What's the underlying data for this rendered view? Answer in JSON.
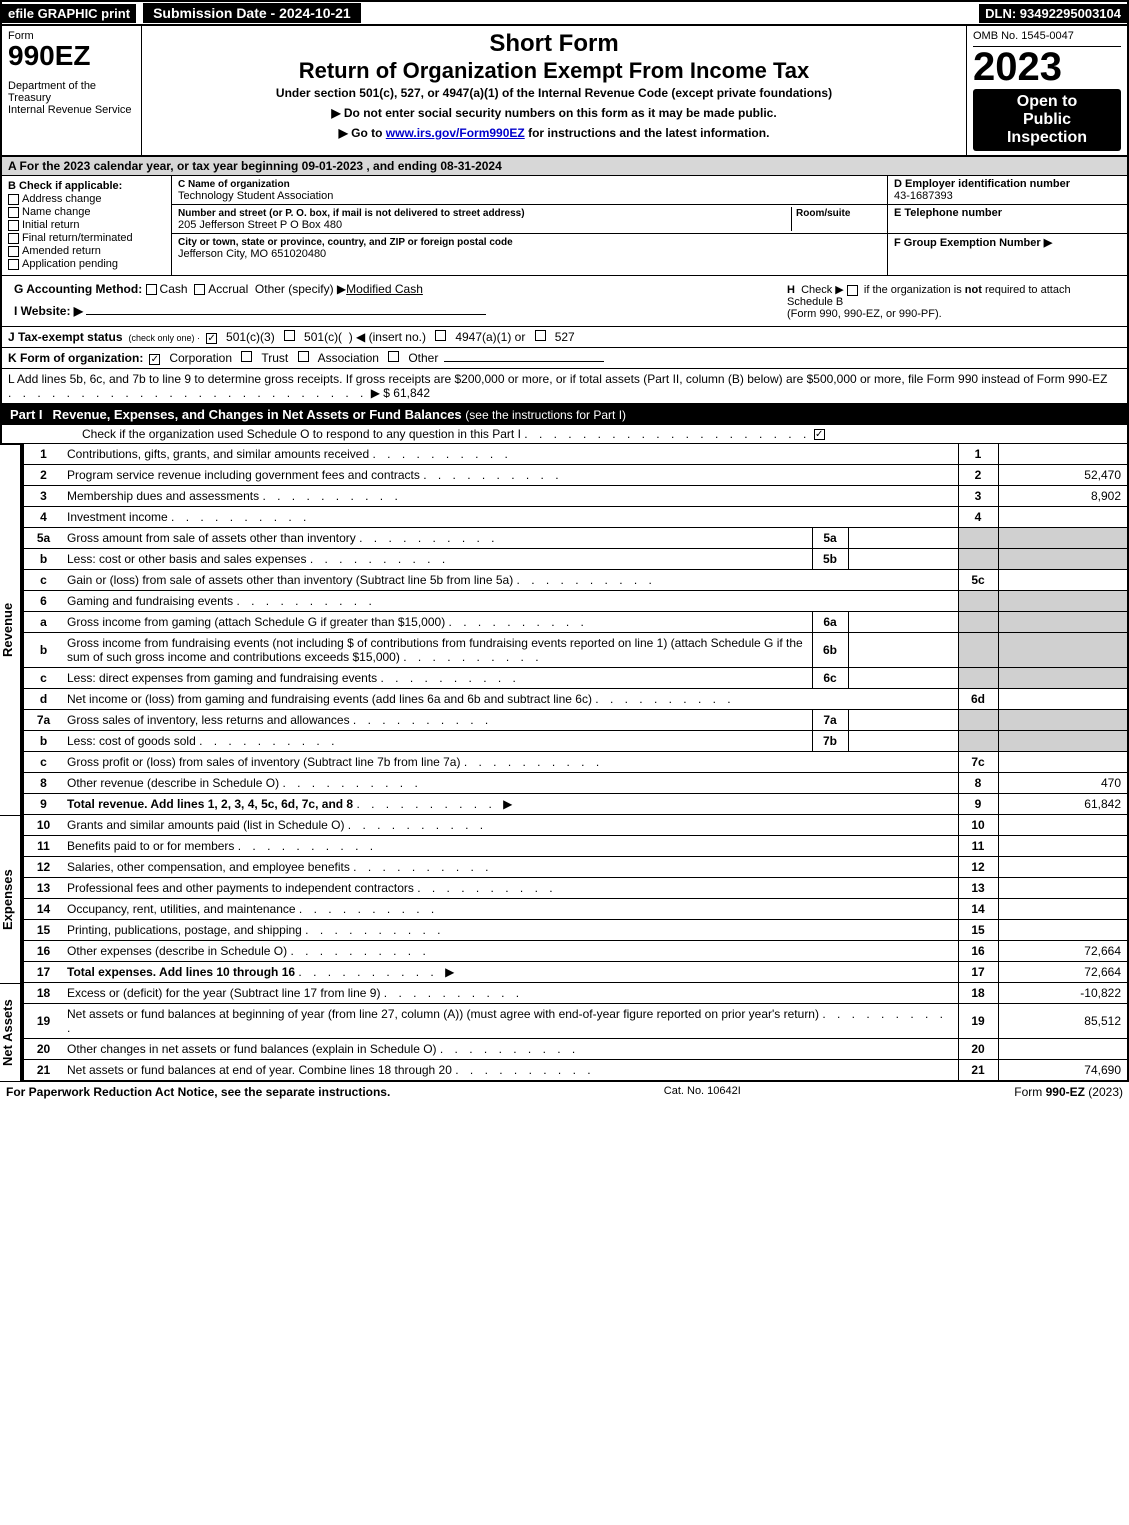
{
  "topbar": {
    "efile": "efile GRAPHIC print",
    "submission": "Submission Date - 2024-10-21",
    "dln": "DLN: 93492295003104"
  },
  "header": {
    "form_label": "Form",
    "form_number": "990EZ",
    "dept1": "Department of the Treasury",
    "dept2": "Internal Revenue Service",
    "short_form": "Short Form",
    "return_title": "Return of Organization Exempt From Income Tax",
    "under": "Under section 501(c), 527, or 4947(a)(1) of the Internal Revenue Code (except private foundations)",
    "note1": "▶ Do not enter social security numbers on this form as it may be made public.",
    "note2_pre": "▶ Go to ",
    "note2_link": "www.irs.gov/Form990EZ",
    "note2_post": " for instructions and the latest information.",
    "omb": "OMB No. 1545-0047",
    "year": "2023",
    "open1": "Open to",
    "open2": "Public",
    "open3": "Inspection"
  },
  "A": "A  For the 2023 calendar year, or tax year beginning 09-01-2023 , and ending 08-31-2024",
  "B": {
    "label": "B  Check if applicable:",
    "opts": [
      "Address change",
      "Name change",
      "Initial return",
      "Final return/terminated",
      "Amended return",
      "Application pending"
    ]
  },
  "C": {
    "name_label": "C Name of organization",
    "name": "Technology Student Association",
    "addr_label": "Number and street (or P. O. box, if mail is not delivered to street address)",
    "room_label": "Room/suite",
    "addr": "205 Jefferson Street P O Box 480",
    "city_label": "City or town, state or province, country, and ZIP or foreign postal code",
    "city": "Jefferson City, MO  651020480"
  },
  "D": {
    "label": "D Employer identification number",
    "val": "43-1687393"
  },
  "E": {
    "label": "E Telephone number",
    "val": ""
  },
  "F": {
    "label": "F Group Exemption Number  ▶",
    "val": ""
  },
  "G": {
    "label": "G Accounting Method:",
    "opts": "Cash   Accrual   Other (specify) ▶",
    "val": "Modified Cash"
  },
  "H": {
    "text1": "H  Check ▶    if the organization is ",
    "not": "not",
    "text2": " required to attach Schedule B",
    "text3": "(Form 990, 990-EZ, or 990-PF)."
  },
  "I": {
    "label": "I Website: ▶",
    "val": ""
  },
  "J": {
    "label": "J Tax-exempt status",
    "sub": "(check only one) ·",
    "opts": "501(c)(3)   501(c)(  ) ◀ (insert no.)   4947(a)(1) or   527",
    "checked": true
  },
  "K": {
    "label": "K Form of organization:",
    "opts": "Corporation   Trust   Association   Other",
    "checked": "Corporation"
  },
  "L": {
    "text": "L Add lines 5b, 6c, and 7b to line 9 to determine gross receipts. If gross receipts are $200,000 or more, or if total assets (Part II, column (B) below) are $500,000 or more, file Form 990 instead of Form 990-EZ",
    "val": "▶ $ 61,842"
  },
  "partI": {
    "tag": "Part I",
    "title": "Revenue, Expenses, and Changes in Net Assets or Fund Balances",
    "subtitle": "(see the instructions for Part I)",
    "check_text": "Check if the organization used Schedule O to respond to any question in this Part I",
    "checked": true
  },
  "revenue": {
    "side": "Revenue",
    "rows": [
      {
        "n": "1",
        "desc": "Contributions, gifts, grants, and similar amounts received",
        "rn": "1",
        "rv": ""
      },
      {
        "n": "2",
        "desc": "Program service revenue including government fees and contracts",
        "rn": "2",
        "rv": "52,470"
      },
      {
        "n": "3",
        "desc": "Membership dues and assessments",
        "rn": "3",
        "rv": "8,902"
      },
      {
        "n": "4",
        "desc": "Investment income",
        "rn": "4",
        "rv": ""
      },
      {
        "n": "5a",
        "desc": "Gross amount from sale of assets other than inventory",
        "in": "5a",
        "iv": "",
        "shaded": true
      },
      {
        "n": "b",
        "desc": "Less: cost or other basis and sales expenses",
        "in": "5b",
        "iv": "",
        "shaded": true
      },
      {
        "n": "c",
        "desc": "Gain or (loss) from sale of assets other than inventory (Subtract line 5b from line 5a)",
        "rn": "5c",
        "rv": ""
      },
      {
        "n": "6",
        "desc": "Gaming and fundraising events",
        "shaded": true,
        "noright": true
      },
      {
        "n": "a",
        "desc": "Gross income from gaming (attach Schedule G if greater than $15,000)",
        "in": "6a",
        "iv": "",
        "shaded": true
      },
      {
        "n": "b",
        "desc": "Gross income from fundraising events (not including $                    of contributions from fundraising events reported on line 1) (attach Schedule G if the sum of such gross income and contributions exceeds $15,000)",
        "in": "6b",
        "iv": "",
        "shaded": true
      },
      {
        "n": "c",
        "desc": "Less: direct expenses from gaming and fundraising events",
        "in": "6c",
        "iv": "",
        "shaded": true
      },
      {
        "n": "d",
        "desc": "Net income or (loss) from gaming and fundraising events (add lines 6a and 6b and subtract line 6c)",
        "rn": "6d",
        "rv": ""
      },
      {
        "n": "7a",
        "desc": "Gross sales of inventory, less returns and allowances",
        "in": "7a",
        "iv": "",
        "shaded": true
      },
      {
        "n": "b",
        "desc": "Less: cost of goods sold",
        "in": "7b",
        "iv": "",
        "shaded": true
      },
      {
        "n": "c",
        "desc": "Gross profit or (loss) from sales of inventory (Subtract line 7b from line 7a)",
        "rn": "7c",
        "rv": ""
      },
      {
        "n": "8",
        "desc": "Other revenue (describe in Schedule O)",
        "rn": "8",
        "rv": "470"
      },
      {
        "n": "9",
        "desc": "Total revenue. Add lines 1, 2, 3, 4, 5c, 6d, 7c, and 8",
        "rn": "9",
        "rv": "61,842",
        "bold": true,
        "arrow": true
      }
    ]
  },
  "expenses": {
    "side": "Expenses",
    "rows": [
      {
        "n": "10",
        "desc": "Grants and similar amounts paid (list in Schedule O)",
        "rn": "10",
        "rv": ""
      },
      {
        "n": "11",
        "desc": "Benefits paid to or for members",
        "rn": "11",
        "rv": ""
      },
      {
        "n": "12",
        "desc": "Salaries, other compensation, and employee benefits",
        "rn": "12",
        "rv": ""
      },
      {
        "n": "13",
        "desc": "Professional fees and other payments to independent contractors",
        "rn": "13",
        "rv": ""
      },
      {
        "n": "14",
        "desc": "Occupancy, rent, utilities, and maintenance",
        "rn": "14",
        "rv": ""
      },
      {
        "n": "15",
        "desc": "Printing, publications, postage, and shipping",
        "rn": "15",
        "rv": ""
      },
      {
        "n": "16",
        "desc": "Other expenses (describe in Schedule O)",
        "rn": "16",
        "rv": "72,664"
      },
      {
        "n": "17",
        "desc": "Total expenses. Add lines 10 through 16",
        "rn": "17",
        "rv": "72,664",
        "bold": true,
        "arrow": true
      }
    ]
  },
  "netassets": {
    "side": "Net Assets",
    "rows": [
      {
        "n": "18",
        "desc": "Excess or (deficit) for the year (Subtract line 17 from line 9)",
        "rn": "18",
        "rv": "-10,822"
      },
      {
        "n": "19",
        "desc": "Net assets or fund balances at beginning of year (from line 27, column (A)) (must agree with end-of-year figure reported on prior year's return)",
        "rn": "19",
        "rv": "85,512"
      },
      {
        "n": "20",
        "desc": "Other changes in net assets or fund balances (explain in Schedule O)",
        "rn": "20",
        "rv": ""
      },
      {
        "n": "21",
        "desc": "Net assets or fund balances at end of year. Combine lines 18 through 20",
        "rn": "21",
        "rv": "74,690"
      }
    ]
  },
  "footer": {
    "left": "For Paperwork Reduction Act Notice, see the separate instructions.",
    "center": "Cat. No. 10642I",
    "right_pre": "Form ",
    "right_bold": "990-EZ",
    "right_post": " (2023)"
  },
  "colors": {
    "shaded": "#d0d0d0",
    "header_gray": "#d7d7d7",
    "black": "#000000",
    "white": "#ffffff",
    "link": "#0000cc"
  }
}
